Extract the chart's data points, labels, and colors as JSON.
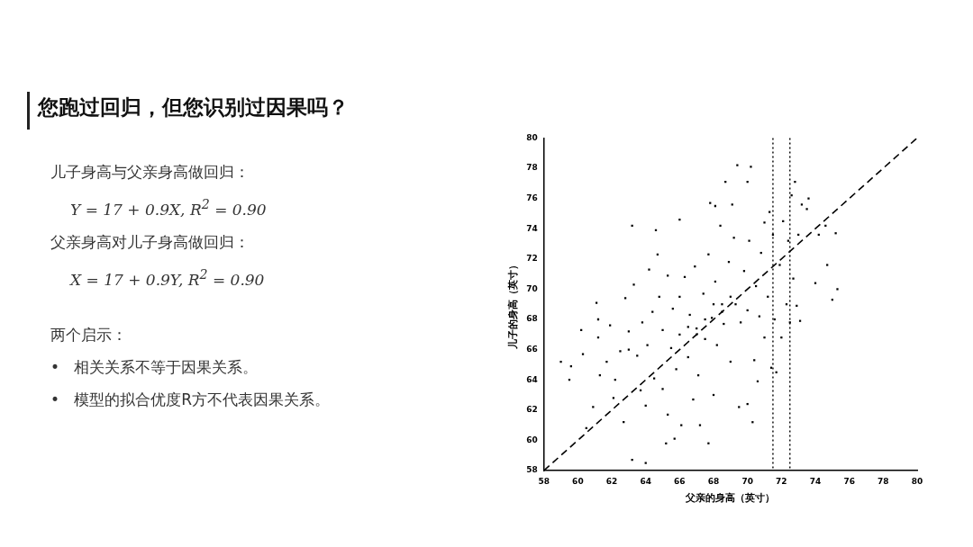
{
  "chart_data": {
    "type": "scatter",
    "title": "您跑过回归，但您识别过因果吗？",
    "xlabel": "父亲的身高（英寸）",
    "ylabel": "儿子的身高（英寸）",
    "xlim": [
      58,
      80
    ],
    "ylim": [
      58,
      80
    ],
    "xticks": [
      58,
      60,
      62,
      64,
      66,
      68,
      70,
      72,
      74,
      76,
      78,
      80
    ],
    "yticks": [
      58,
      60,
      62,
      64,
      66,
      68,
      70,
      72,
      74,
      76,
      78,
      80
    ],
    "grid": false,
    "legend": false,
    "series": [
      {
        "type": "scatter",
        "color": "#000000",
        "marker": "square",
        "x": [
          59,
          59.5,
          59.6,
          60.2,
          60.3,
          60.5,
          60.9,
          61.1,
          61.2,
          61.2,
          61.3,
          61.7,
          61.9,
          62.1,
          62.2,
          62.5,
          62.7,
          62.8,
          63,
          63,
          63.2,
          63.2,
          63.3,
          63.5,
          63.7,
          63.8,
          64,
          64,
          64.1,
          64.2,
          64.4,
          64.5,
          64.6,
          64.7,
          64.8,
          65,
          65,
          65.2,
          65.3,
          65.3,
          65.5,
          65.6,
          65.7,
          65.8,
          66,
          66,
          66,
          66.1,
          66.3,
          66.5,
          66.6,
          66.8,
          66.9,
          67,
          67.1,
          67.2,
          67.4,
          67.5,
          67.7,
          67.7,
          67.8,
          67.9,
          68,
          68.1,
          68.1,
          68.2,
          68.4,
          68.5,
          68.6,
          68.7,
          68.9,
          69,
          69.1,
          69.2,
          69.3,
          69.4,
          69.5,
          69.6,
          69.8,
          70,
          70,
          70,
          70.1,
          70.2,
          70.3,
          70.4,
          70.5,
          70.6,
          70.7,
          70.8,
          71,
          71,
          71.2,
          71.3,
          71.4,
          71.5,
          71.6,
          71.7,
          71.9,
          72,
          72.1,
          72.3,
          72.4,
          72.5,
          72.6,
          72.7,
          72.8,
          72.9,
          73,
          73.1,
          73.2,
          73.5,
          73.6,
          74,
          74.2,
          74.6,
          74.7,
          75,
          75.2,
          75.3,
          67.5,
          68.5,
          67,
          66.5,
          68,
          69
        ],
        "values": [
          65.2,
          64,
          64.9,
          67.3,
          65.7,
          60.8,
          62.2,
          69.1,
          66.8,
          68,
          64.3,
          65.2,
          67.6,
          62.8,
          64,
          65.9,
          61.2,
          69.4,
          67.2,
          66,
          58.7,
          74.2,
          70.3,
          65.6,
          63.3,
          67.8,
          58.5,
          62.3,
          66.3,
          71.3,
          68.5,
          64.1,
          73.9,
          72.3,
          69.5,
          67.3,
          63.4,
          59.8,
          61.7,
          70.9,
          66.1,
          68.7,
          60.1,
          64.7,
          69.5,
          74.6,
          67,
          61,
          70.8,
          65.5,
          68.3,
          62.7,
          71.5,
          67.4,
          64.3,
          61,
          69.7,
          66.7,
          59.8,
          72.3,
          75.7,
          68.1,
          63,
          75.5,
          70.5,
          66.3,
          74.2,
          69,
          67.7,
          77.1,
          71.8,
          65.2,
          75.6,
          73.4,
          69,
          78.2,
          62.2,
          67.8,
          71.2,
          68.6,
          77.1,
          62.4,
          73.2,
          78.1,
          61.2,
          65.3,
          70.2,
          63.9,
          68.2,
          72.4,
          74.4,
          66.8,
          69.5,
          75.1,
          64.8,
          73.6,
          68,
          64.5,
          71.6,
          66.8,
          74.5,
          69,
          73.2,
          67.8,
          76.2,
          70.7,
          77.1,
          68.9,
          73.6,
          67.9,
          75.6,
          75.3,
          76,
          70.4,
          73.6,
          74.2,
          71.6,
          69.3,
          73.7,
          70,
          68,
          68.5,
          67,
          67.5,
          69,
          69.5
        ]
      },
      {
        "type": "line",
        "color": "#000000",
        "line_style": "dashed",
        "x": [
          58,
          80
        ],
        "values": [
          58,
          80
        ]
      }
    ],
    "ref_lines": [
      {
        "axis": "x",
        "value": 71.5,
        "line_style": "dotted",
        "color": "#000000"
      },
      {
        "axis": "x",
        "value": 72.5,
        "line_style": "dotted",
        "color": "#000000"
      }
    ],
    "annotations": [
      "儿子身高与父亲身高做回归：",
      "Y = 17 + 0.9X, R$^{2}$ = 0.90",
      "父亲身高对儿子身高做回归：",
      "X = 17 + 0.9Y, R$^{2}$ = 0.90",
      "两个启示：",
      "•   相关关系不等于因果关系。",
      "•   模型的拟合优度R方不代表因果关系。"
    ]
  }
}
